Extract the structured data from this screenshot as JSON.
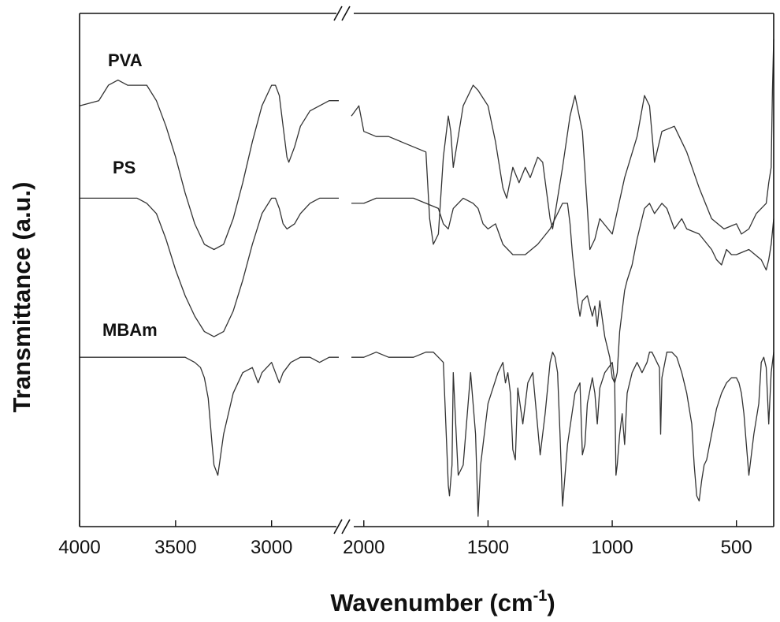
{
  "chart_data": {
    "type": "line",
    "title": "",
    "xlabel": "Wavenumber (cm",
    "xlabel_sup": "-1",
    "xlabel_close": ")",
    "ylabel": "Transmittance (a.u.)",
    "x_axis": {
      "reversed": true,
      "broken": true,
      "segments": [
        {
          "range": [
            4000,
            2650
          ],
          "ticks": [
            4000,
            3500,
            3000
          ]
        },
        {
          "range": [
            2050,
            350
          ],
          "ticks": [
            2000,
            1500,
            1000,
            500
          ]
        }
      ]
    },
    "y_axis": {
      "tick_labels": false,
      "ylim": [
        0,
        1
      ]
    },
    "grid": false,
    "legend": "none",
    "line_color": "#333333",
    "series": [
      {
        "name": "PVA",
        "x": [
          4000,
          3900,
          3850,
          3800,
          3750,
          3700,
          3650,
          3600,
          3550,
          3500,
          3450,
          3400,
          3350,
          3300,
          3250,
          3200,
          3150,
          3100,
          3050,
          3000,
          2980,
          2960,
          2940,
          2920,
          2910,
          2880,
          2850,
          2800,
          2750,
          2700,
          2650,
          2050,
          2020,
          2000,
          1950,
          1900,
          1850,
          1800,
          1750,
          1735,
          1720,
          1700,
          1680,
          1660,
          1650,
          1640,
          1600,
          1560,
          1540,
          1500,
          1470,
          1440,
          1425,
          1400,
          1375,
          1350,
          1330,
          1300,
          1280,
          1250,
          1240,
          1200,
          1170,
          1150,
          1120,
          1100,
          1090,
          1070,
          1050,
          1000,
          950,
          900,
          870,
          850,
          830,
          800,
          750,
          700,
          650,
          600,
          550,
          500,
          480,
          450,
          420,
          400,
          380,
          370,
          360,
          355,
          350
        ],
        "y": [
          0.82,
          0.83,
          0.86,
          0.87,
          0.86,
          0.86,
          0.86,
          0.83,
          0.78,
          0.72,
          0.65,
          0.59,
          0.55,
          0.54,
          0.55,
          0.6,
          0.67,
          0.75,
          0.82,
          0.86,
          0.86,
          0.84,
          0.78,
          0.72,
          0.71,
          0.74,
          0.78,
          0.81,
          0.82,
          0.83,
          0.83,
          0.8,
          0.82,
          0.77,
          0.76,
          0.76,
          0.75,
          0.74,
          0.73,
          0.6,
          0.55,
          0.57,
          0.72,
          0.8,
          0.77,
          0.7,
          0.82,
          0.86,
          0.85,
          0.82,
          0.75,
          0.66,
          0.64,
          0.7,
          0.67,
          0.7,
          0.68,
          0.72,
          0.71,
          0.6,
          0.58,
          0.7,
          0.8,
          0.84,
          0.77,
          0.62,
          0.54,
          0.56,
          0.6,
          0.57,
          0.68,
          0.76,
          0.84,
          0.82,
          0.71,
          0.77,
          0.78,
          0.73,
          0.66,
          0.6,
          0.58,
          0.59,
          0.57,
          0.58,
          0.61,
          0.62,
          0.63,
          0.67,
          0.7,
          0.85,
          0.95
        ]
      },
      {
        "name": "PS",
        "x": [
          4000,
          3900,
          3850,
          3800,
          3750,
          3700,
          3650,
          3600,
          3550,
          3500,
          3450,
          3400,
          3350,
          3300,
          3250,
          3200,
          3150,
          3100,
          3050,
          3000,
          2980,
          2960,
          2940,
          2920,
          2880,
          2850,
          2800,
          2750,
          2700,
          2650,
          2050,
          2000,
          1950,
          1900,
          1850,
          1800,
          1750,
          1700,
          1680,
          1660,
          1650,
          1640,
          1600,
          1560,
          1540,
          1520,
          1500,
          1470,
          1440,
          1400,
          1350,
          1300,
          1250,
          1200,
          1180,
          1170,
          1160,
          1140,
          1130,
          1120,
          1100,
          1080,
          1070,
          1060,
          1050,
          1030,
          1010,
          1000,
          990,
          980,
          970,
          950,
          940,
          920,
          900,
          870,
          850,
          830,
          800,
          780,
          750,
          720,
          700,
          650,
          600,
          580,
          560,
          540,
          520,
          500,
          450,
          400,
          380,
          370,
          360,
          350
        ],
        "y": [
          0.64,
          0.64,
          0.64,
          0.64,
          0.64,
          0.64,
          0.63,
          0.61,
          0.56,
          0.5,
          0.45,
          0.41,
          0.38,
          0.37,
          0.38,
          0.42,
          0.48,
          0.55,
          0.61,
          0.64,
          0.64,
          0.62,
          0.59,
          0.58,
          0.59,
          0.61,
          0.63,
          0.64,
          0.64,
          0.64,
          0.63,
          0.63,
          0.64,
          0.64,
          0.64,
          0.64,
          0.63,
          0.62,
          0.59,
          0.58,
          0.6,
          0.62,
          0.64,
          0.63,
          0.62,
          0.59,
          0.58,
          0.59,
          0.55,
          0.53,
          0.53,
          0.55,
          0.58,
          0.63,
          0.63,
          0.59,
          0.53,
          0.44,
          0.41,
          0.44,
          0.45,
          0.41,
          0.43,
          0.39,
          0.44,
          0.37,
          0.33,
          0.29,
          0.28,
          0.3,
          0.38,
          0.46,
          0.48,
          0.51,
          0.56,
          0.62,
          0.63,
          0.61,
          0.63,
          0.62,
          0.58,
          0.6,
          0.58,
          0.57,
          0.54,
          0.52,
          0.51,
          0.54,
          0.53,
          0.53,
          0.54,
          0.52,
          0.5,
          0.52,
          0.55,
          0.6
        ]
      },
      {
        "name": "MBAm",
        "x": [
          4000,
          3900,
          3800,
          3700,
          3600,
          3500,
          3450,
          3400,
          3370,
          3350,
          3330,
          3310,
          3300,
          3280,
          3250,
          3200,
          3150,
          3100,
          3070,
          3050,
          3000,
          2980,
          2960,
          2940,
          2900,
          2850,
          2800,
          2750,
          2700,
          2650,
          2050,
          2000,
          1950,
          1900,
          1850,
          1800,
          1750,
          1720,
          1700,
          1680,
          1660,
          1655,
          1645,
          1640,
          1630,
          1620,
          1600,
          1570,
          1550,
          1540,
          1530,
          1500,
          1460,
          1440,
          1430,
          1420,
          1410,
          1400,
          1390,
          1380,
          1360,
          1340,
          1320,
          1305,
          1290,
          1270,
          1250,
          1240,
          1230,
          1220,
          1210,
          1200,
          1180,
          1150,
          1130,
          1120,
          1110,
          1100,
          1080,
          1070,
          1060,
          1050,
          1030,
          1000,
          990,
          985,
          980,
          970,
          960,
          950,
          940,
          920,
          900,
          880,
          860,
          850,
          840,
          830,
          810,
          805,
          800,
          780,
          760,
          740,
          720,
          700,
          680,
          670,
          660,
          650,
          640,
          630,
          620,
          600,
          580,
          560,
          540,
          520,
          500,
          490,
          480,
          470,
          460,
          450,
          430,
          410,
          400,
          390,
          380,
          370,
          360,
          350
        ],
        "y": [
          0.33,
          0.33,
          0.33,
          0.33,
          0.33,
          0.33,
          0.33,
          0.32,
          0.31,
          0.29,
          0.25,
          0.16,
          0.12,
          0.1,
          0.18,
          0.26,
          0.3,
          0.31,
          0.28,
          0.3,
          0.32,
          0.3,
          0.28,
          0.3,
          0.32,
          0.33,
          0.33,
          0.32,
          0.33,
          0.33,
          0.33,
          0.33,
          0.34,
          0.33,
          0.33,
          0.33,
          0.34,
          0.34,
          0.33,
          0.32,
          0.08,
          0.06,
          0.12,
          0.3,
          0.2,
          0.1,
          0.12,
          0.3,
          0.18,
          0.02,
          0.12,
          0.24,
          0.3,
          0.32,
          0.28,
          0.3,
          0.26,
          0.15,
          0.13,
          0.27,
          0.2,
          0.28,
          0.3,
          0.22,
          0.14,
          0.22,
          0.32,
          0.34,
          0.33,
          0.3,
          0.18,
          0.04,
          0.16,
          0.26,
          0.28,
          0.14,
          0.16,
          0.24,
          0.29,
          0.26,
          0.2,
          0.27,
          0.3,
          0.32,
          0.28,
          0.1,
          0.12,
          0.18,
          0.22,
          0.16,
          0.26,
          0.3,
          0.32,
          0.3,
          0.32,
          0.34,
          0.34,
          0.33,
          0.31,
          0.18,
          0.29,
          0.34,
          0.34,
          0.33,
          0.3,
          0.26,
          0.2,
          0.12,
          0.06,
          0.05,
          0.09,
          0.12,
          0.13,
          0.18,
          0.23,
          0.26,
          0.28,
          0.29,
          0.29,
          0.28,
          0.26,
          0.22,
          0.16,
          0.1,
          0.18,
          0.24,
          0.32,
          0.33,
          0.31,
          0.2,
          0.3,
          0.34
        ]
      }
    ]
  }
}
